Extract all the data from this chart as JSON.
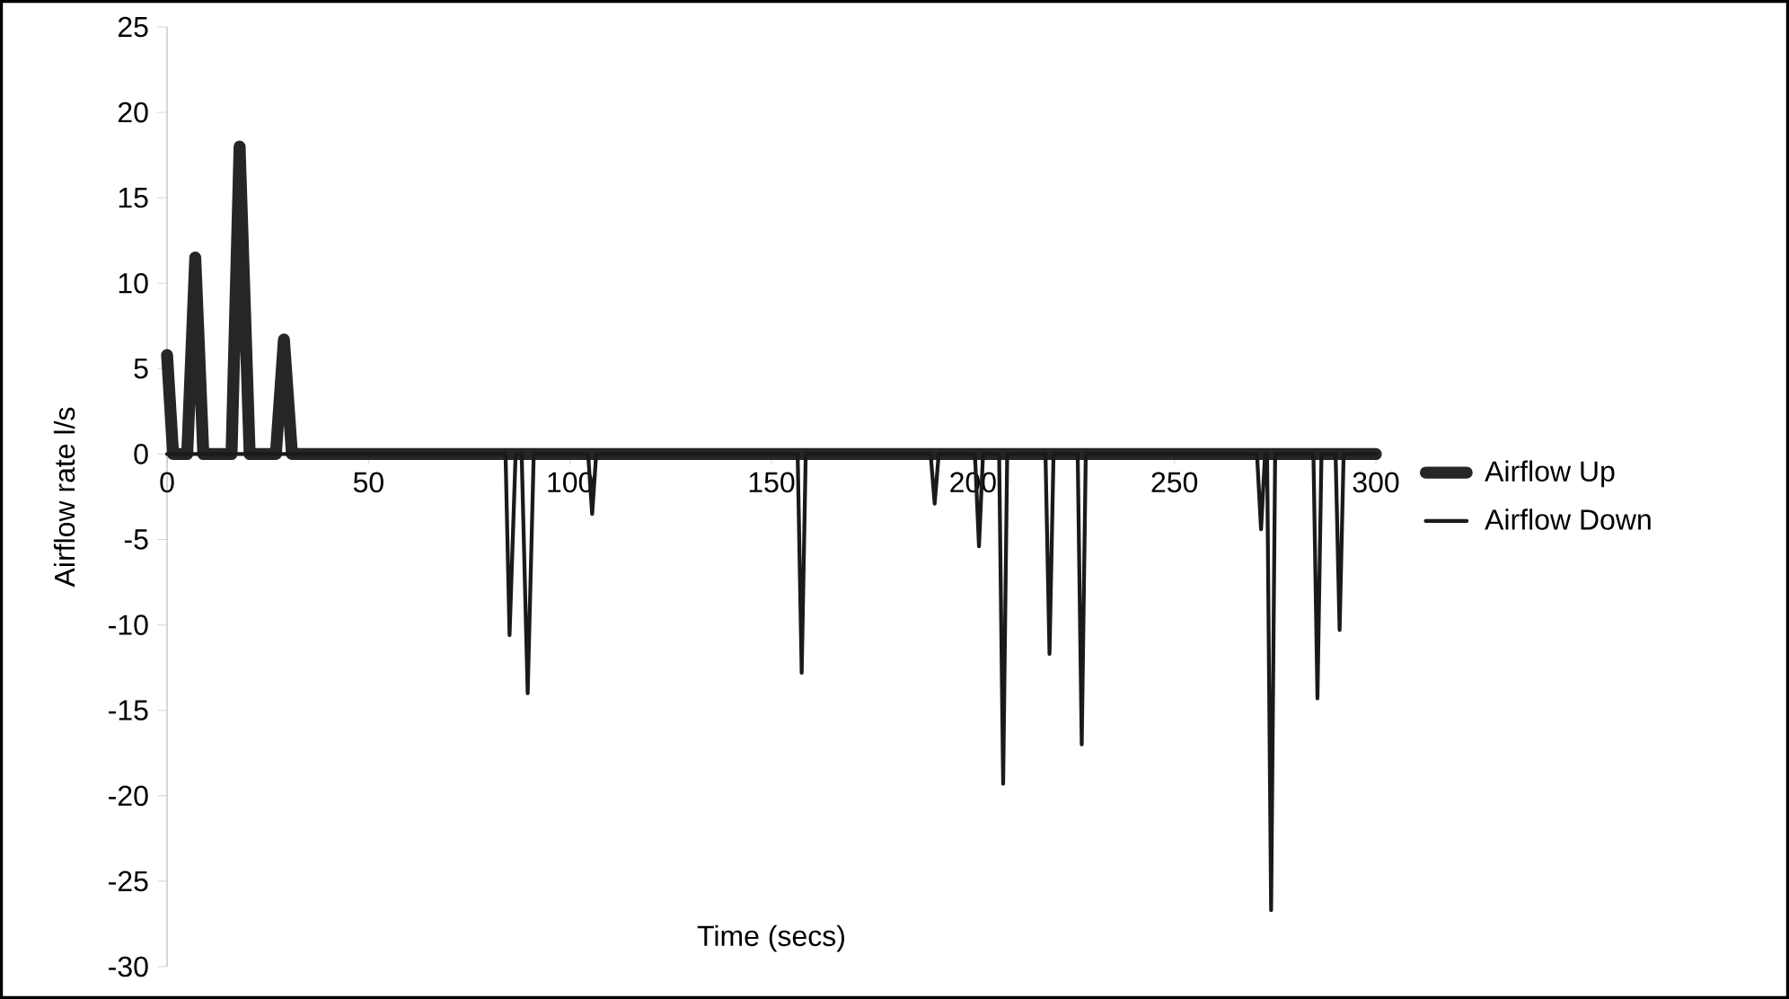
{
  "chart_data": {
    "type": "line",
    "xlabel": "Time (secs)",
    "ylabel": "Airflow rate l/s",
    "xlim": [
      0,
      300
    ],
    "ylim": [
      -30,
      25
    ],
    "xticks": [
      0,
      50,
      100,
      150,
      200,
      250,
      300
    ],
    "yticks": [
      -30,
      -25,
      -20,
      -15,
      -10,
      -5,
      0,
      5,
      10,
      15,
      20,
      25
    ],
    "legend": "right",
    "series": [
      {
        "name": "Airflow Up",
        "color": "#262626",
        "x": [
          0,
          1.5,
          5,
          7,
          9,
          16,
          18,
          20.5,
          27,
          29,
          31,
          300
        ],
        "values": [
          5.8,
          0,
          0,
          11.5,
          0,
          0,
          18,
          0,
          0,
          6.7,
          0,
          0
        ]
      },
      {
        "name": "Airflow Down",
        "color": "#1a1a1a",
        "x": [
          0,
          84,
          85,
          86.5,
          88,
          89.5,
          91,
          104.5,
          105.5,
          106.5,
          156.5,
          157.5,
          158.5,
          189.5,
          190.5,
          191.5,
          200.5,
          201.5,
          202.5,
          206.5,
          207.5,
          208.5,
          218,
          219,
          220,
          226,
          227,
          228,
          270.5,
          271.5,
          272.5,
          273,
          274,
          275,
          284.5,
          285.5,
          286.5,
          290,
          291,
          292,
          300
        ],
        "values": [
          0,
          0,
          -10.6,
          0,
          0,
          -14,
          0,
          0,
          -3.5,
          0,
          0,
          -12.8,
          0,
          0,
          -2.9,
          0,
          0,
          -5.4,
          0,
          0,
          -19.3,
          0,
          0,
          -11.7,
          0,
          0,
          -17,
          0,
          0,
          -4.4,
          0,
          0,
          -26.7,
          0,
          0,
          -14.3,
          0,
          0,
          -10.3,
          0,
          0
        ]
      }
    ]
  }
}
